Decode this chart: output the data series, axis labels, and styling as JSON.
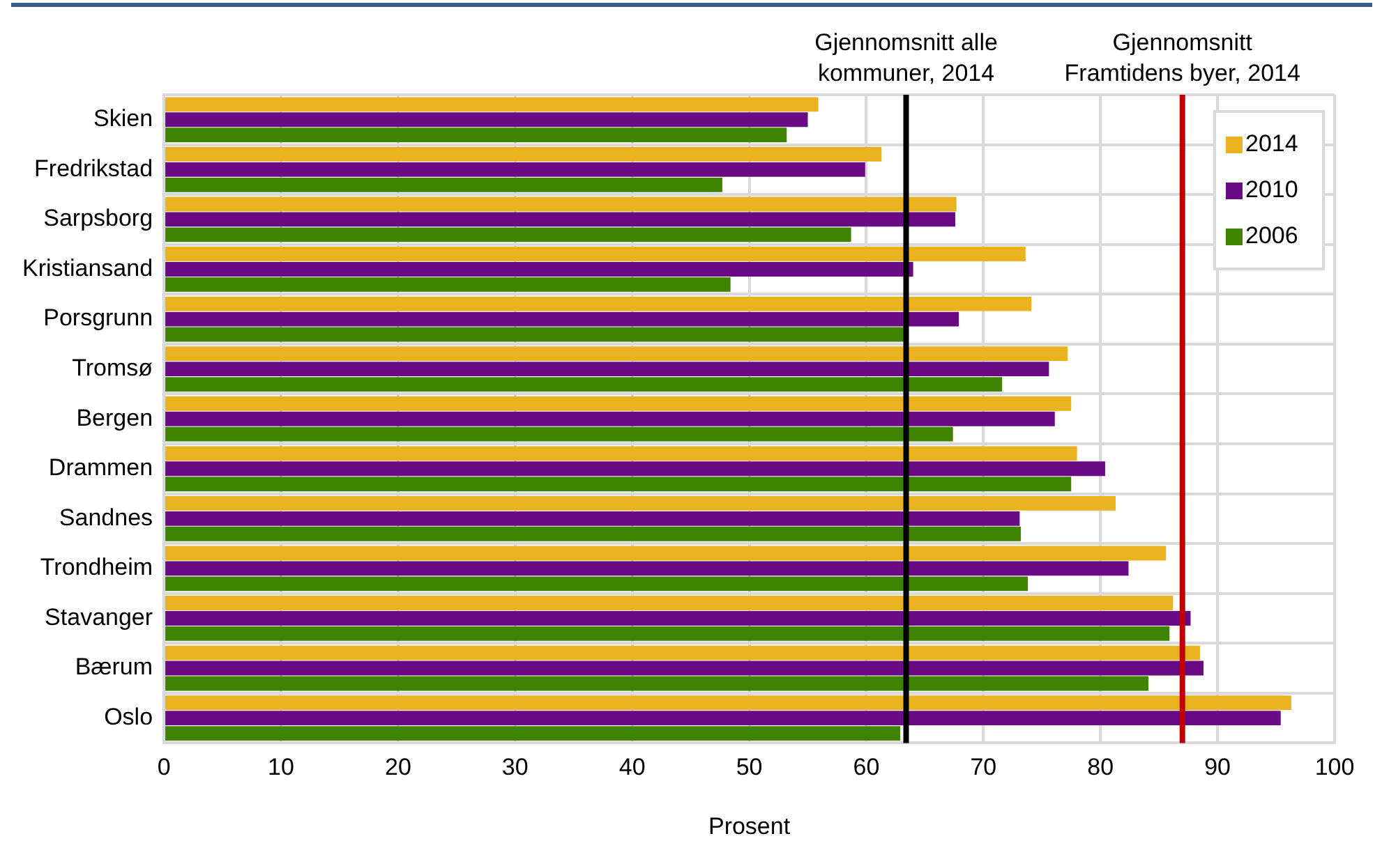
{
  "chart_data": {
    "type": "bar",
    "orientation": "horizontal",
    "xlabel": "Prosent",
    "categories": [
      "Skien",
      "Fredrikstad",
      "Sarpsborg",
      "Kristiansand",
      "Porsgrunn",
      "Tromsø",
      "Bergen",
      "Drammen",
      "Sandnes",
      "Trondheim",
      "Stavanger",
      "Bærum",
      "Oslo"
    ],
    "series": [
      {
        "name": "2014",
        "color": "#ebb220",
        "values": [
          55.9,
          61.3,
          67.7,
          73.6,
          74.1,
          77.2,
          77.5,
          78.0,
          81.3,
          85.6,
          86.2,
          88.5,
          96.3
        ]
      },
      {
        "name": "2010",
        "color": "#6a0a84",
        "values": [
          55.0,
          59.9,
          67.6,
          64.0,
          67.9,
          75.6,
          76.1,
          80.4,
          73.1,
          82.4,
          87.7,
          88.8,
          95.4
        ]
      },
      {
        "name": "2006",
        "color": "#3f8400",
        "values": [
          53.2,
          47.7,
          58.7,
          48.4,
          63.4,
          71.6,
          67.4,
          77.5,
          73.2,
          73.8,
          85.9,
          84.1,
          62.9
        ]
      }
    ],
    "xlim": [
      0,
      100
    ],
    "xticks": [
      0,
      10,
      20,
      30,
      40,
      50,
      60,
      70,
      80,
      90,
      100
    ],
    "ref_lines": [
      {
        "axis": "x",
        "value": 63.4,
        "label": "Gjennomsnitt alle\nkommuner, 2014",
        "color": "#000000"
      },
      {
        "axis": "x",
        "value": 87.0,
        "label": "Gjennomsnitt\nFramtidens byer, 2014",
        "color": "#c00000"
      }
    ],
    "grid": true,
    "legend": "top right"
  }
}
